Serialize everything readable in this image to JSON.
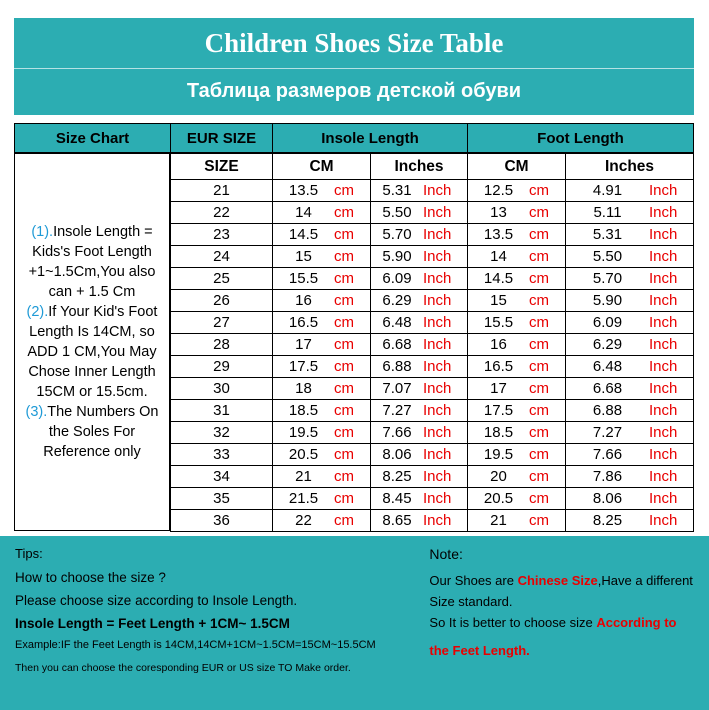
{
  "banner": {
    "title_en": "Children Shoes Size Table",
    "title_ru": "Таблица размеров детской обуви"
  },
  "colors": {
    "teal": "#2CADB2",
    "red": "#E80000",
    "marker_blue": "#1F9AD6"
  },
  "table": {
    "header": {
      "size_chart": "Size Chart",
      "eur_size": "EUR SIZE",
      "insole_length": "Insole Length",
      "foot_length": "Foot Length"
    },
    "subheader": {
      "size": "SIZE",
      "cm": "CM",
      "inches": "Inches"
    },
    "units": {
      "cm": "cm",
      "inch": "Inch"
    },
    "side_note": [
      [
        {
          "t": "(1).",
          "c": "mark"
        },
        {
          "t": "Insole Length = Kids's Foot Length +1~1.5Cm,You also can + 1.5 Cm",
          "c": ""
        }
      ],
      [
        {
          "t": "(2).",
          "c": "mark"
        },
        {
          "t": "If Your Kid's Foot Length Is 14CM, so ADD 1 CM,You May Chose Inner Length 15CM or 15.5cm.",
          "c": ""
        }
      ],
      [
        {
          "t": "(3).",
          "c": "mark"
        },
        {
          "t": "The Numbers On the Soles For Reference only",
          "c": ""
        }
      ]
    ],
    "rows": [
      {
        "size": "21",
        "insole_cm": "13.5",
        "insole_in": "5.31",
        "foot_cm": "12.5",
        "foot_in": "4.91"
      },
      {
        "size": "22",
        "insole_cm": "14",
        "insole_in": "5.50",
        "foot_cm": "13",
        "foot_in": "5.11"
      },
      {
        "size": "23",
        "insole_cm": "14.5",
        "insole_in": "5.70",
        "foot_cm": "13.5",
        "foot_in": "5.31"
      },
      {
        "size": "24",
        "insole_cm": "15",
        "insole_in": "5.90",
        "foot_cm": "14",
        "foot_in": "5.50"
      },
      {
        "size": "25",
        "insole_cm": "15.5",
        "insole_in": "6.09",
        "foot_cm": "14.5",
        "foot_in": "5.70"
      },
      {
        "size": "26",
        "insole_cm": "16",
        "insole_in": "6.29",
        "foot_cm": "15",
        "foot_in": "5.90"
      },
      {
        "size": "27",
        "insole_cm": "16.5",
        "insole_in": "6.48",
        "foot_cm": "15.5",
        "foot_in": "6.09"
      },
      {
        "size": "28",
        "insole_cm": "17",
        "insole_in": "6.68",
        "foot_cm": "16",
        "foot_in": "6.29"
      },
      {
        "size": "29",
        "insole_cm": "17.5",
        "insole_in": "6.88",
        "foot_cm": "16.5",
        "foot_in": "6.48"
      },
      {
        "size": "30",
        "insole_cm": "18",
        "insole_in": "7.07",
        "foot_cm": "17",
        "foot_in": "6.68"
      },
      {
        "size": "31",
        "insole_cm": "18.5",
        "insole_in": "7.27",
        "foot_cm": "17.5",
        "foot_in": "6.88"
      },
      {
        "size": "32",
        "insole_cm": "19.5",
        "insole_in": "7.66",
        "foot_cm": "18.5",
        "foot_in": "7.27"
      },
      {
        "size": "33",
        "insole_cm": "20.5",
        "insole_in": "8.06",
        "foot_cm": "19.5",
        "foot_in": "7.66"
      },
      {
        "size": "34",
        "insole_cm": "21",
        "insole_in": "8.25",
        "foot_cm": "20",
        "foot_in": "7.86"
      },
      {
        "size": "35",
        "insole_cm": "21.5",
        "insole_in": "8.45",
        "foot_cm": "20.5",
        "foot_in": "8.06"
      },
      {
        "size": "36",
        "insole_cm": "22",
        "insole_in": "8.65",
        "foot_cm": "21",
        "foot_in": "8.25"
      }
    ]
  },
  "footer": {
    "tips": {
      "heading": "Tips:",
      "line1": "How to choose the size ?",
      "line2": "Please choose size according to Insole Length.",
      "line3": "Insole Length = Feet Length + 1CM~ 1.5CM",
      "line4": "Example:IF the Feet Length is 14CM,14CM+1CM~1.5CM=15CM~15.5CM",
      "line5": "Then you can choose the coresponding EUR or US size TO Make order."
    },
    "note": {
      "heading": "Note:",
      "para1": [
        {
          "t": "Our Shoes are ",
          "c": ""
        },
        {
          "t": "Chinese Size",
          "c": "red"
        },
        {
          "t": ",Have a different Size standard.",
          "c": ""
        }
      ],
      "para2": [
        {
          "t": "So It is better to choose size ",
          "c": ""
        },
        {
          "t": "According to",
          "c": "red"
        }
      ],
      "para3": [
        {
          "t": "the Feet Length.",
          "c": "red"
        }
      ]
    }
  }
}
